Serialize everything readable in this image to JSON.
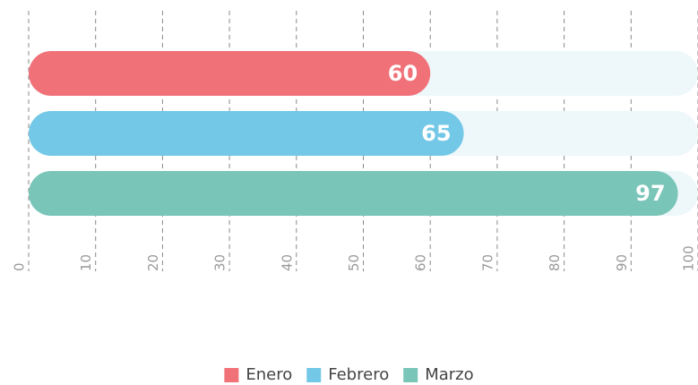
{
  "chart_data": {
    "type": "bar",
    "orientation": "horizontal",
    "series": [
      {
        "name": "Enero",
        "color": "#f07178",
        "values": [
          60
        ]
      },
      {
        "name": "Febrero",
        "color": "#72c8e6",
        "values": [
          65
        ]
      },
      {
        "name": "Marzo",
        "color": "#79c5b8",
        "values": [
          97
        ]
      }
    ],
    "xlim": [
      0,
      100
    ],
    "xticks": [
      0,
      10,
      20,
      30,
      40,
      50,
      60,
      70,
      80,
      90,
      100
    ],
    "grid": true,
    "legend": "bottom"
  }
}
